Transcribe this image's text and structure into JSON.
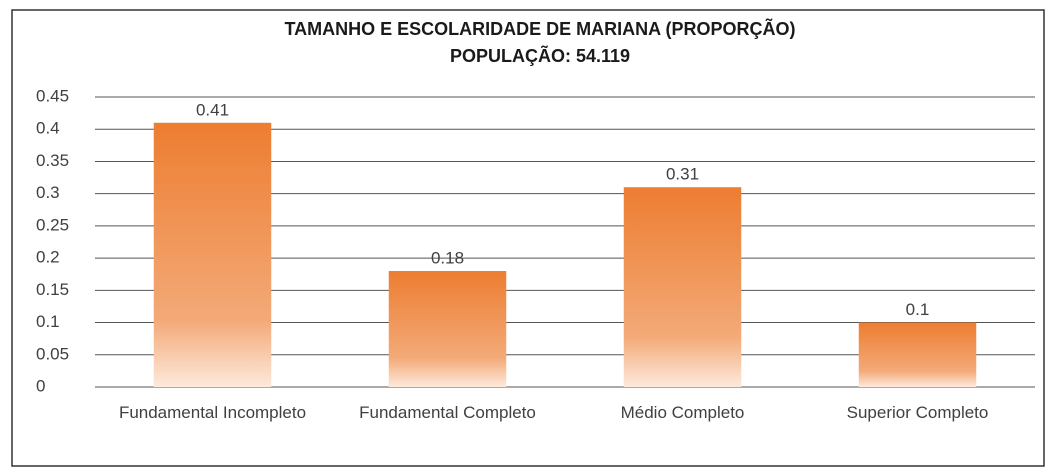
{
  "chart_data": {
    "type": "bar",
    "title": "TAMANHO E ESCOLARIDADE DE MARIANA (PROPORÇÃO)",
    "subtitle": "POPULAÇÃO: 54.119",
    "categories": [
      "Fundamental Incompleto",
      "Fundamental Completo",
      "Médio Completo",
      "Superior Completo"
    ],
    "values": [
      0.41,
      0.18,
      0.31,
      0.1
    ],
    "color": "#ed7d31",
    "ylim": [
      0,
      0.45
    ],
    "yticks": [
      0,
      0.05,
      0.1,
      0.15,
      0.2,
      0.25,
      0.3,
      0.35,
      0.4,
      0.45
    ],
    "grid": true
  }
}
